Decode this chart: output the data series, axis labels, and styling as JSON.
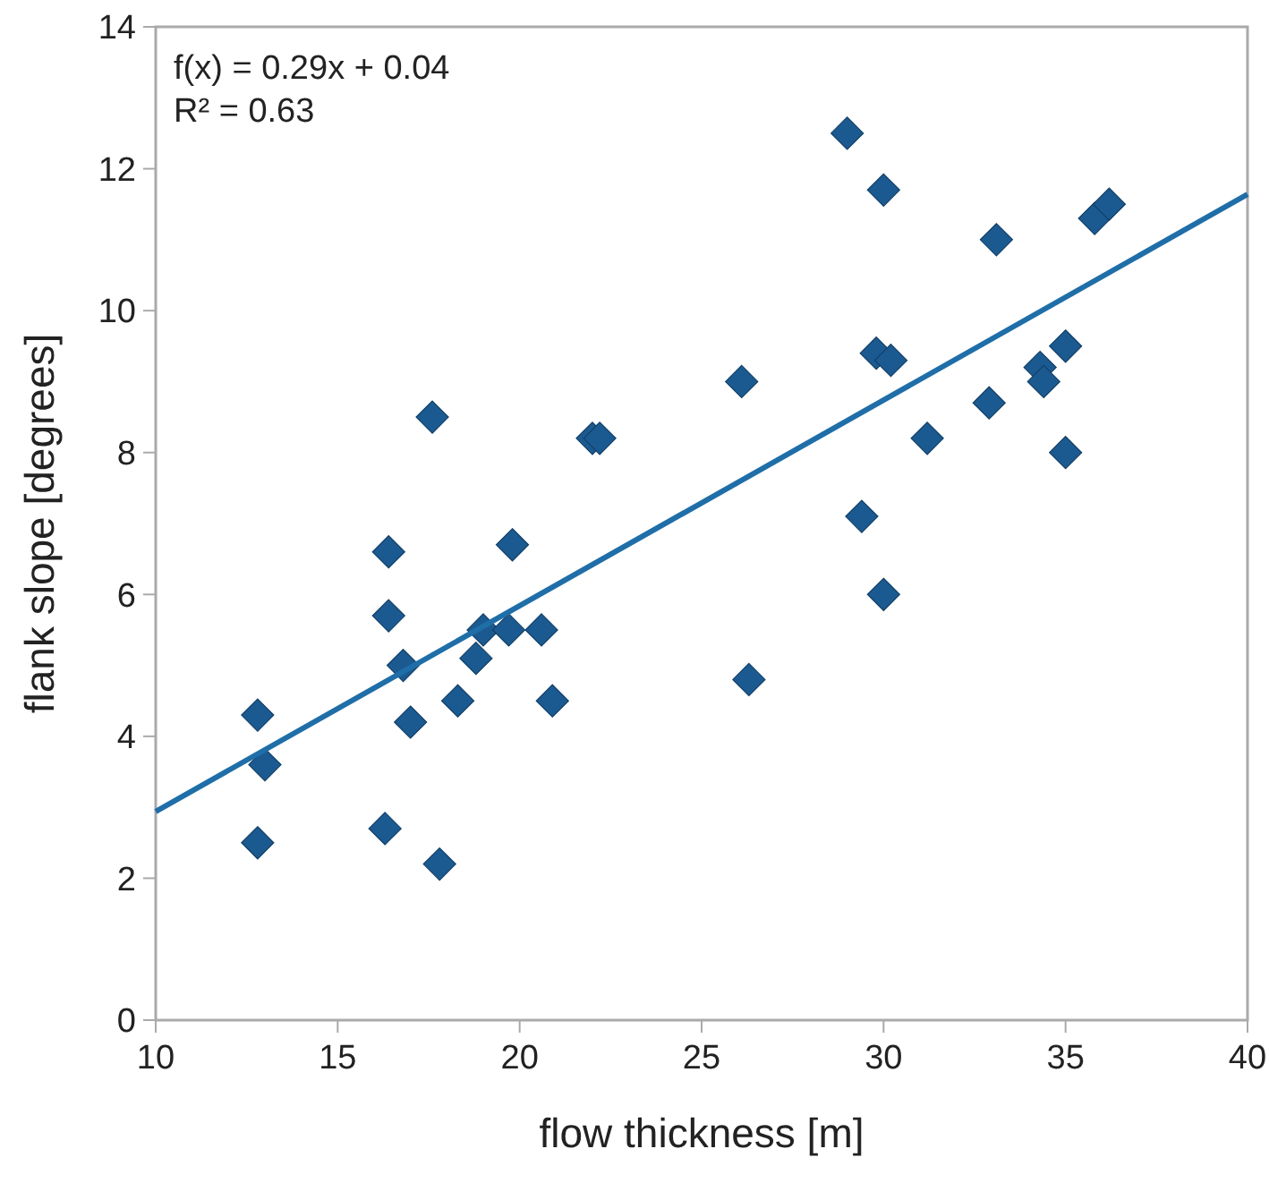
{
  "chart_data": {
    "type": "scatter",
    "xlabel": "flow thickness [m]",
    "ylabel": "flank slope [degrees]",
    "annotations": [
      "f(x) = 0.29x + 0.04",
      "R² = 0.63"
    ],
    "xlim": [
      10,
      40
    ],
    "xticks": [
      10,
      15,
      20,
      25,
      30,
      35,
      40
    ],
    "ylim": [
      0,
      14
    ],
    "yticks": [
      0,
      2,
      4,
      6,
      8,
      10,
      12,
      14
    ],
    "grid": false,
    "marker": "diamond",
    "series": [
      {
        "color": "#1b5a91",
        "x": [
          12.8,
          13,
          12.8,
          16.4,
          16.4,
          16.3,
          16.8,
          17,
          17.6,
          17.8,
          18.3,
          18.8,
          19,
          19.7,
          19.8,
          20.6,
          20.9,
          22,
          22.2,
          26.1,
          26.3,
          29,
          29.4,
          29.8,
          30,
          30,
          30.2,
          31.2,
          32.9,
          33.1,
          34.3,
          34.4,
          35,
          35,
          35.8,
          36.2
        ],
        "values": [
          4.3,
          3.6,
          2.5,
          6.6,
          5.7,
          2.7,
          5.0,
          4.2,
          8.5,
          2.2,
          4.5,
          5.1,
          5.5,
          5.5,
          6.7,
          5.5,
          4.5,
          8.2,
          8.2,
          9.0,
          4.8,
          12.5,
          7.1,
          9.4,
          11.7,
          6.0,
          9.3,
          8.2,
          8.7,
          11.0,
          9.2,
          9.0,
          9.5,
          8.0,
          11.3,
          11.5
        ]
      },
      {
        "type": "line",
        "color": "#1f6ea8",
        "line_style": "solid",
        "marker": "none",
        "x": [
          10,
          40
        ],
        "values": [
          2.94,
          11.64
        ]
      }
    ]
  }
}
